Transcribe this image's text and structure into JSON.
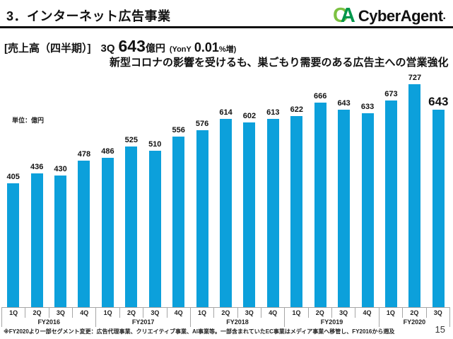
{
  "header": {
    "title": "3．インターネット広告事業",
    "logo": {
      "mark_c": "C",
      "mark_a": "A",
      "name": "CyberAgent",
      "reg": "."
    }
  },
  "headline": {
    "label": "[売上高（四半期）]",
    "quarter": "3Q",
    "value": "643",
    "unit": "億円",
    "yoy_open": "(YonY",
    "yoy_value": "0.01",
    "yoy_close": "%増)",
    "line2": "新型コロナの影響を受けるも、巣ごもり需要のある広告主への営業強化"
  },
  "chart_data": {
    "type": "bar",
    "title": "売上高（四半期）",
    "unit_label": "単位：億円",
    "categories": [
      "1Q",
      "2Q",
      "3Q",
      "4Q",
      "1Q",
      "2Q",
      "3Q",
      "4Q",
      "1Q",
      "2Q",
      "3Q",
      "4Q",
      "1Q",
      "2Q",
      "3Q",
      "4Q",
      "1Q",
      "2Q",
      "3Q"
    ],
    "year_groups": [
      {
        "label": "FY2016",
        "span": 4
      },
      {
        "label": "FY2017",
        "span": 4
      },
      {
        "label": "FY2018",
        "span": 4
      },
      {
        "label": "FY2019",
        "span": 4
      },
      {
        "label": "FY2020",
        "span": 3
      }
    ],
    "values": [
      405,
      436,
      430,
      478,
      486,
      525,
      510,
      556,
      576,
      614,
      602,
      613,
      622,
      666,
      643,
      633,
      673,
      727,
      643
    ],
    "ylim": [
      0,
      760
    ],
    "gridlines": false,
    "legend": "none",
    "bar_color": "#0CA0DB",
    "axis_line_color": "#A6A6A6",
    "highlight_last_label": true
  },
  "footer": {
    "note": "※FY2020より一部セグメント変更：広告代理事業、クリエイティブ事業、AI事業等。一部含まれていたEC事業はメディア事業へ移管し、FY2016から遡及",
    "page_number": "15"
  }
}
